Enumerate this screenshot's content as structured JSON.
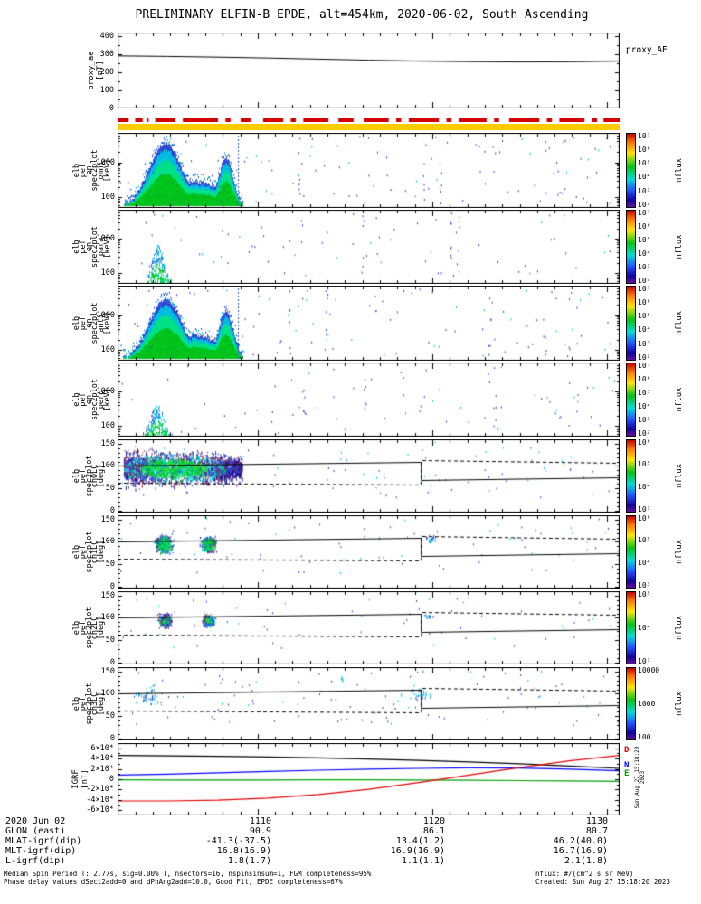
{
  "title": "PRELIMINARY ELFIN-B EPDE, alt=454km, 2020-06-02, South Ascending",
  "colorbar_unit": "nflux",
  "colors": {
    "availability_red": "#d40000",
    "quality_yellow": "#ffcc00"
  },
  "proxy_panel": {
    "ylabel": "proxy_ae\n[nT]",
    "right_label": "proxy_AE",
    "yticks": [
      "400",
      "300",
      "200",
      "100",
      "0"
    ]
  },
  "panels": [
    {
      "key": "omni",
      "ylabel": "elb\npef\nen\nspec2plot\nomni\n[keV]",
      "yticks": [
        "1000",
        "100"
      ],
      "cbar_ticks": [
        "10⁷",
        "10⁶",
        "10⁵",
        "10⁴",
        "10³",
        "10²"
      ]
    },
    {
      "key": "para",
      "ylabel": "elb\npef\nen\nspec2plot\npara\n[keV]",
      "yticks": [
        "1000",
        "100"
      ],
      "cbar_ticks": [
        "10⁷",
        "10⁶",
        "10⁵",
        "10⁴",
        "10³",
        "10²"
      ]
    },
    {
      "key": "anti",
      "ylabel": "elb\npef\nen\nspec2plot\nanti\n[keV]",
      "yticks": [
        "1000",
        "100"
      ],
      "cbar_ticks": [
        "10⁷",
        "10⁶",
        "10⁵",
        "10⁴",
        "10³",
        "10²"
      ]
    },
    {
      "key": "perp",
      "ylabel": "elb\npef\nen\nspec2plot\nperp\n[keV]",
      "yticks": [
        "1000",
        "100"
      ],
      "cbar_ticks": [
        "10⁷",
        "10⁶",
        "10⁵",
        "10⁴",
        "10³",
        "10²"
      ]
    },
    {
      "key": "ch0",
      "ylabel": "elb\npef\nspec2plot\nch0LC\n[deg]",
      "yticks": [
        "150",
        "100",
        "50",
        "0"
      ],
      "cbar_ticks": [
        "10⁶",
        "10⁵",
        "10⁴",
        "10³"
      ]
    },
    {
      "key": "ch1",
      "ylabel": "elb\npef\nspec2plot\nch1LC\n[deg]",
      "yticks": [
        "150",
        "100",
        "50",
        "0"
      ],
      "cbar_ticks": [
        "10⁶",
        "10⁵",
        "10⁴",
        "10³"
      ]
    },
    {
      "key": "ch2",
      "ylabel": "elb\npef\nspec2plot\nch2LC\n[deg]",
      "yticks": [
        "150",
        "100",
        "50",
        "0"
      ],
      "cbar_ticks": [
        "10⁵",
        "10⁴",
        "10³"
      ]
    },
    {
      "key": "ch3",
      "ylabel": "elb\npef\nspec2plot\nch3LC\n[deg]",
      "yticks": [
        "150",
        "100",
        "50",
        "0"
      ],
      "cbar_ticks": [
        "10000",
        "1000",
        "100"
      ]
    }
  ],
  "igrf_panel": {
    "ylabel": "IGRF\n[nT]",
    "yticks": [
      "6×10⁴",
      "4×10⁴",
      "2×10⁴",
      "0",
      "-2×10⁴",
      "-4×10⁴",
      "-6×10⁴"
    ],
    "legend": [
      {
        "text": "D",
        "color": "#e00000"
      },
      {
        "text": "N",
        "color": "#0000ff"
      },
      {
        "text": "E",
        "color": "#00a000"
      }
    ]
  },
  "side_stamp": "Sun Aug 27 15:18:20 2023",
  "time_axis": {
    "rows": [
      {
        "label": "2020 Jun 02",
        "values": [
          "1110",
          "1120",
          "1130"
        ]
      },
      {
        "label": "GLON (east)",
        "values": [
          "90.9",
          "86.1",
          "80.7"
        ]
      },
      {
        "label": "MLAT-igrf(dip)",
        "values": [
          "-41.3(-37.5)",
          "13.4(1.2)",
          "46.2(40.0)"
        ]
      },
      {
        "label": "MLT-igrf(dip)",
        "values": [
          "16.8(16.9)",
          "16.9(16.9)",
          "16.7(16.9)"
        ]
      },
      {
        "label": "L-igrf(dip)",
        "values": [
          "1.8(1.7)",
          "1.1(1.1)",
          "2.1(1.8)"
        ]
      }
    ]
  },
  "footer": {
    "left1": "Median Spin Period T: 2.77s, sig=0.00% T, nsectors=16, nspinsinsum=1, FGM completeness=95%",
    "left2": "Phase delay values dSect2add=0 and dPhAng2add=10.0, Good Fit, EPDE completeness=67%",
    "right1": "nflux: #/(cm^2 s sr MeV)",
    "right2": "Created: Sun Aug 27 15:18:20 2023"
  },
  "chart_data": {
    "type": "heatmap",
    "description": "ELFIN-B EPDE survey plot: proxy AE line, electron energy-flux spectrograms (omni/para/anti/perp, log energy 50-7000 keV), pitch-angle spectrograms ch0LC-ch3LC (0-180 deg) with loss-cone (solid) and anti-loss-cone (dashed) lines, and IGRF field components. Main precipitation burst occurs near start of interval (~1102-1106 UT).",
    "xaxis": {
      "ticks": [
        {
          "label": "1110",
          "f": 0.279
        },
        {
          "label": "1120",
          "f": 0.627
        },
        {
          "label": "1130",
          "f": 0.975
        }
      ],
      "minor_step_f": 0.0348,
      "minor_start_f": 0.0006
    },
    "proxy_ae": {
      "type": "line",
      "ylim": [
        0,
        420
      ],
      "values": [
        291,
        288,
        284,
        279,
        273,
        267,
        262,
        259,
        257,
        258,
        262
      ]
    },
    "availability_segments_f": [
      [
        0,
        0.022
      ],
      [
        0.035,
        0.05
      ],
      [
        0.058,
        0.062
      ],
      [
        0.075,
        0.115
      ],
      [
        0.13,
        0.2
      ],
      [
        0.215,
        0.225
      ],
      [
        0.245,
        0.265
      ],
      [
        0.29,
        0.33
      ],
      [
        0.345,
        0.355
      ],
      [
        0.37,
        0.42
      ],
      [
        0.44,
        0.47
      ],
      [
        0.49,
        0.54
      ],
      [
        0.555,
        0.565
      ],
      [
        0.58,
        0.64
      ],
      [
        0.655,
        0.665
      ],
      [
        0.68,
        0.735
      ],
      [
        0.75,
        0.76
      ],
      [
        0.78,
        0.84
      ],
      [
        0.855,
        0.865
      ],
      [
        0.88,
        0.93
      ],
      [
        0.945,
        0.955
      ],
      [
        0.968,
        1
      ]
    ],
    "energy_panels": {
      "ylim_kev": [
        50,
        7000
      ],
      "omni": {
        "interval": [
          0.01,
          0.248
        ],
        "base_kev": 55,
        "pedestal": {
          "top_kev": 280,
          "c": 0.13,
          "s": 0.085
        },
        "peaks": [
          {
            "c": 0.095,
            "s": 0.045,
            "top_kev": 3500
          },
          {
            "c": 0.215,
            "s": 0.02,
            "top_kev": 1300
          }
        ],
        "style": "solid",
        "edge_line_f": 0.239,
        "speckles": 120
      },
      "para": {
        "interval": [
          0.058,
          0.105
        ],
        "base_kev": 55,
        "peaks": [
          {
            "c": 0.08,
            "s": 0.016,
            "top_kev": 650
          }
        ],
        "style": "sparse",
        "speckles": 70
      },
      "anti": {
        "interval": [
          0.01,
          0.248
        ],
        "base_kev": 55,
        "pedestal": {
          "top_kev": 260,
          "c": 0.13,
          "s": 0.085
        },
        "peaks": [
          {
            "c": 0.095,
            "s": 0.045,
            "top_kev": 2800
          },
          {
            "c": 0.215,
            "s": 0.02,
            "top_kev": 1300
          }
        ],
        "style": "solid",
        "edge_line_f": 0.239,
        "speckles": 110
      },
      "perp": {
        "interval": [
          0.052,
          0.108
        ],
        "base_kev": 55,
        "peaks": [
          {
            "c": 0.078,
            "s": 0.018,
            "top_kev": 420
          }
        ],
        "style": "sparse",
        "speckles": 70
      }
    },
    "pitch_panels": {
      "ylim_deg": [
        0,
        160
      ],
      "loss_cone": {
        "step_f": 0.605,
        "solid_left": [
          101,
          109
        ],
        "solid_right": [
          68,
          74
        ],
        "dashed_left": [
          62,
          58
        ],
        "dashed_right": [
          113,
          108
        ]
      },
      "ch0": {
        "style": "band",
        "band": {
          "interval": [
            0.012,
            0.248
          ],
          "center_deg": 96,
          "halfwidth_left_deg": 55,
          "halfwidth_slope": -70,
          "n": 3200
        },
        "core": {
          "c": 0.112,
          "s": 0.105,
          "v": 96,
          "sv": 33
        },
        "speckles": 85
      },
      "ch1": {
        "style": "blobs",
        "blobs": [
          {
            "c": 0.092,
            "sf": 0.013,
            "v": 96,
            "sv": 14,
            "n": 800
          },
          {
            "c": 0.18,
            "sf": 0.011,
            "v": 96,
            "sv": 13,
            "n": 620
          }
        ],
        "clusters": [
          {
            "c": 0.625,
            "sf": 0.02,
            "v": 110,
            "sv": 12,
            "n": 16
          }
        ],
        "speckles": 80
      },
      "ch2": {
        "style": "blobs",
        "cyan_bias": true,
        "blobs": [
          {
            "c": 0.094,
            "sf": 0.01,
            "v": 95,
            "sv": 11,
            "n": 460
          },
          {
            "c": 0.181,
            "sf": 0.009,
            "v": 95,
            "sv": 10,
            "n": 340
          }
        ],
        "clusters": [
          {
            "c": 0.62,
            "sf": 0.02,
            "v": 105,
            "sv": 10,
            "n": 10
          }
        ],
        "speckles": 60
      },
      "ch3": {
        "style": "scatter",
        "clusters": [
          {
            "c": 0.06,
            "sf": 0.03,
            "v": 100,
            "sv": 30,
            "n": 34
          },
          {
            "c": 0.6,
            "sf": 0.04,
            "v": 100,
            "sv": 25,
            "n": 20
          },
          {
            "c": 0.45,
            "sf": 0.012,
            "v": 138,
            "sv": 8,
            "n": 4
          }
        ],
        "speckles": 110
      }
    },
    "igrf": {
      "type": "line",
      "ylim": [
        -70000,
        70000
      ],
      "series": [
        {
          "name": "B",
          "color": "#000000",
          "values": [
            46000,
            45400,
            44400,
            43100,
            41400,
            39200,
            36500,
            33400,
            29800,
            25600,
            21000
          ]
        },
        {
          "name": "N",
          "color": "#0000ff",
          "values": [
            8000,
            10000,
            12500,
            15000,
            17500,
            19500,
            21000,
            22000,
            21500,
            19500,
            16500
          ]
        },
        {
          "name": "E",
          "color": "#00a000",
          "values": [
            -1200,
            -1400,
            -1500,
            -1400,
            -1200,
            -1100,
            -1400,
            -1900,
            -2600,
            -3400,
            -4200
          ]
        },
        {
          "name": "D",
          "color": "#e00000",
          "values": [
            -42000,
            -42000,
            -40500,
            -36500,
            -29500,
            -19500,
            -6500,
            8000,
            22500,
            35500,
            46000
          ]
        }
      ]
    }
  }
}
